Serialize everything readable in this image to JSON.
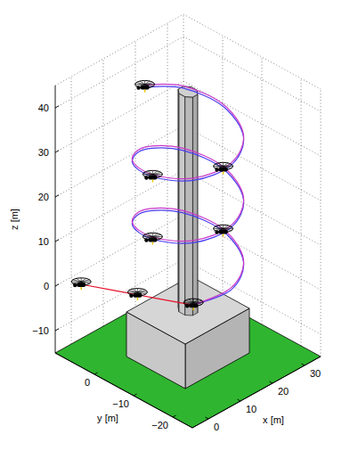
{
  "chart_data": {
    "type": "line3d",
    "xlabel": "x [m]",
    "ylabel": "y [m]",
    "zlabel": "z [m]",
    "xlim": [
      -5,
      35
    ],
    "ylim": [
      -25,
      10
    ],
    "zlim": [
      -15,
      45
    ],
    "xticks": [
      0,
      10,
      20,
      30
    ],
    "yticks": [
      {
        "value": -20,
        "label": "−20"
      },
      {
        "value": -10,
        "label": "−10"
      },
      0
    ],
    "zticks": [
      {
        "value": -10,
        "label": "−10"
      },
      0,
      10,
      20,
      30,
      40
    ],
    "grid": true,
    "box": {
      "x": [
        5,
        25
      ],
      "y": [
        -15,
        0
      ],
      "z": [
        -15,
        -5
      ]
    },
    "chimney": {
      "x": 15,
      "y": -7.5,
      "radius": 2,
      "z": [
        -5,
        44
      ]
    },
    "series": [
      {
        "type": "line",
        "color": "#e8102a",
        "line_style": "solid",
        "x": [
          -3,
          2.1,
          7.2
        ],
        "y": [
          5,
          -5.2,
          -15.3
        ],
        "z": [
          2,
          2.5,
          3
        ]
      },
      {
        "type": "line",
        "color": "#4a3cf0",
        "line_style": "solid",
        "x": [
          7.2,
          15,
          22.8,
          26,
          22.8,
          15,
          7.2,
          4,
          7.2,
          15,
          22.8,
          26,
          22.8,
          15,
          7.2,
          4,
          7.2,
          15,
          22.8,
          26,
          22.8,
          15
        ],
        "y": [
          -15.3,
          -18.5,
          -15.3,
          -7.5,
          0.3,
          3.5,
          0.3,
          -7.5,
          -15.3,
          -18.5,
          -15.3,
          -7.5,
          0.3,
          3.5,
          0.3,
          -7.5,
          -15.3,
          -18.5,
          -15.3,
          -7.5,
          0.3,
          3.5
        ],
        "z": [
          3,
          4.8,
          6.5,
          8.3,
          10,
          11.8,
          13.5,
          15.3,
          17,
          18.8,
          20.5,
          22.3,
          24,
          25.8,
          27.5,
          29.3,
          31,
          32.8,
          34.5,
          36.3,
          38,
          39.8
        ]
      },
      {
        "type": "line",
        "color": "#c838c8",
        "line_style": "solid",
        "x": [
          7.2,
          15,
          22.8,
          26,
          22.8,
          15,
          7.2,
          4,
          7.2,
          15,
          22.8,
          26,
          22.8,
          15,
          7.2,
          4,
          7.2,
          15,
          22.8,
          26,
          22.8,
          15
        ],
        "y": [
          -15.3,
          -18.5,
          -15.3,
          -7.5,
          0.3,
          3.5,
          0.3,
          -7.5,
          -15.3,
          -18.5,
          -15.3,
          -7.5,
          0.3,
          3.5,
          0.3,
          -7.5,
          -15.3,
          -18.5,
          -15.3,
          -7.5,
          0.3,
          3.5
        ],
        "z": [
          3,
          5.3,
          7,
          8.8,
          10.5,
          12.3,
          14,
          15.8,
          17.5,
          19.3,
          21,
          22.8,
          24.5,
          26.3,
          28,
          29.8,
          31.5,
          33.3,
          35,
          36.8,
          38.5,
          40.3
        ]
      },
      {
        "type": "scatter",
        "color": "#000000",
        "marker": "quadrotor",
        "x": [
          -3,
          2.1,
          7.2,
          26,
          4,
          26,
          4,
          15
        ],
        "y": [
          5,
          -5.2,
          -15.3,
          -7.5,
          -7.5,
          -7.5,
          -7.5,
          3.5
        ],
        "z": [
          2,
          2.5,
          3,
          8.3,
          15.3,
          22.3,
          29.3,
          39.8
        ]
      }
    ]
  }
}
